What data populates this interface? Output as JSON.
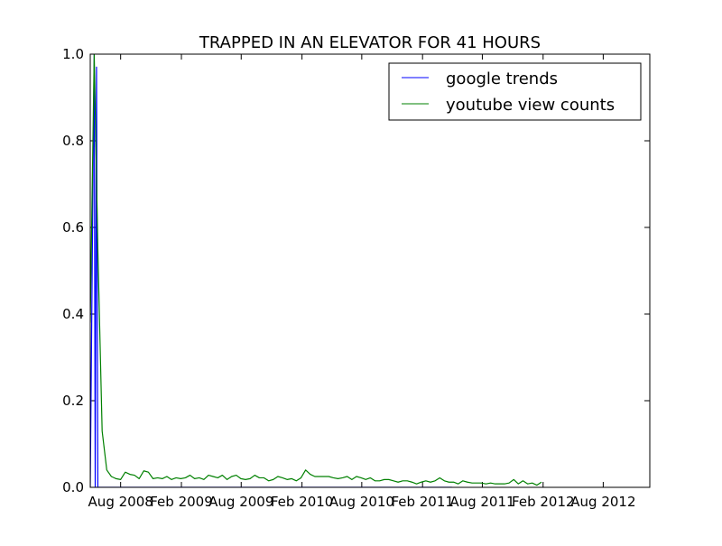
{
  "chart_data": {
    "type": "line",
    "title": "TRAPPED IN AN ELEVATOR FOR 41 HOURS",
    "xlabel": "",
    "ylabel": "",
    "x_axis": {
      "type": "date",
      "range": [
        "2008-05-01",
        "2012-12-20"
      ],
      "ticks": [
        {
          "date": "2008-08-01",
          "label": "Aug 2008"
        },
        {
          "date": "2009-02-01",
          "label": "Feb 2009"
        },
        {
          "date": "2009-08-01",
          "label": "Aug 2009"
        },
        {
          "date": "2010-02-01",
          "label": "Feb 2010"
        },
        {
          "date": "2010-08-01",
          "label": "Aug 2010"
        },
        {
          "date": "2011-02-01",
          "label": "Feb 2011"
        },
        {
          "date": "2011-08-01",
          "label": "Aug 2011"
        },
        {
          "date": "2012-02-01",
          "label": "Feb 2012"
        },
        {
          "date": "2012-08-01",
          "label": "Aug 2012"
        }
      ]
    },
    "ylim": [
      0.0,
      1.0
    ],
    "yticks": [
      "0.0",
      "0.2",
      "0.4",
      "0.6",
      "0.8",
      "1.0"
    ],
    "ytick_values": [
      0,
      0.2,
      0.4,
      0.6,
      0.8,
      1.0
    ],
    "grid": false,
    "legend": {
      "position": "top-right"
    },
    "series": [
      {
        "name": "google trends",
        "color": "#0000ff",
        "points": [
          [
            "2008-05-01",
            0.0
          ],
          [
            "2008-05-08",
            0.6
          ],
          [
            "2008-05-13",
            1.0
          ],
          [
            "2008-05-16",
            0.0
          ],
          [
            "2008-05-20",
            0.97
          ],
          [
            "2008-05-24",
            0.0
          ],
          [
            "2008-07-01",
            0.0
          ],
          [
            "2009-01-01",
            0.0
          ],
          [
            "2009-07-01",
            0.0
          ],
          [
            "2010-01-01",
            0.0
          ],
          [
            "2010-07-01",
            0.0
          ],
          [
            "2011-01-01",
            0.0
          ],
          [
            "2011-05-01",
            0.0
          ]
        ]
      },
      {
        "name": "youtube view counts",
        "color": "#008000",
        "points": [
          [
            "2008-05-01",
            0.38
          ],
          [
            "2008-05-13",
            1.0
          ],
          [
            "2008-05-24",
            0.55
          ],
          [
            "2008-06-06",
            0.13
          ],
          [
            "2008-06-20",
            0.04
          ],
          [
            "2008-07-04",
            0.025
          ],
          [
            "2008-07-18",
            0.02
          ],
          [
            "2008-08-01",
            0.018
          ],
          [
            "2008-08-15",
            0.035
          ],
          [
            "2008-08-29",
            0.03
          ],
          [
            "2008-09-12",
            0.028
          ],
          [
            "2008-09-26",
            0.02
          ],
          [
            "2008-10-10",
            0.038
          ],
          [
            "2008-10-24",
            0.035
          ],
          [
            "2008-11-07",
            0.02
          ],
          [
            "2008-11-21",
            0.022
          ],
          [
            "2008-12-05",
            0.02
          ],
          [
            "2008-12-19",
            0.025
          ],
          [
            "2009-01-02",
            0.018
          ],
          [
            "2009-01-16",
            0.022
          ],
          [
            "2009-01-30",
            0.02
          ],
          [
            "2009-02-13",
            0.022
          ],
          [
            "2009-02-27",
            0.028
          ],
          [
            "2009-03-13",
            0.02
          ],
          [
            "2009-03-27",
            0.022
          ],
          [
            "2009-04-10",
            0.018
          ],
          [
            "2009-04-24",
            0.028
          ],
          [
            "2009-05-08",
            0.025
          ],
          [
            "2009-05-22",
            0.022
          ],
          [
            "2009-06-05",
            0.028
          ],
          [
            "2009-06-19",
            0.018
          ],
          [
            "2009-07-03",
            0.025
          ],
          [
            "2009-07-17",
            0.028
          ],
          [
            "2009-07-31",
            0.02
          ],
          [
            "2009-08-14",
            0.018
          ],
          [
            "2009-08-28",
            0.02
          ],
          [
            "2009-09-11",
            0.028
          ],
          [
            "2009-09-25",
            0.022
          ],
          [
            "2009-10-09",
            0.022
          ],
          [
            "2009-10-23",
            0.015
          ],
          [
            "2009-11-06",
            0.018
          ],
          [
            "2009-11-20",
            0.025
          ],
          [
            "2009-12-04",
            0.022
          ],
          [
            "2009-12-18",
            0.018
          ],
          [
            "2010-01-01",
            0.02
          ],
          [
            "2010-01-15",
            0.015
          ],
          [
            "2010-01-29",
            0.022
          ],
          [
            "2010-02-12",
            0.04
          ],
          [
            "2010-02-26",
            0.03
          ],
          [
            "2010-03-12",
            0.025
          ],
          [
            "2010-03-26",
            0.025
          ],
          [
            "2010-04-09",
            0.025
          ],
          [
            "2010-04-23",
            0.025
          ],
          [
            "2010-05-07",
            0.022
          ],
          [
            "2010-05-21",
            0.02
          ],
          [
            "2010-06-04",
            0.022
          ],
          [
            "2010-06-18",
            0.025
          ],
          [
            "2010-07-02",
            0.018
          ],
          [
            "2010-07-16",
            0.025
          ],
          [
            "2010-07-30",
            0.022
          ],
          [
            "2010-08-13",
            0.018
          ],
          [
            "2010-08-27",
            0.022
          ],
          [
            "2010-09-10",
            0.015
          ],
          [
            "2010-09-24",
            0.015
          ],
          [
            "2010-10-08",
            0.018
          ],
          [
            "2010-10-22",
            0.018
          ],
          [
            "2010-11-05",
            0.015
          ],
          [
            "2010-11-19",
            0.012
          ],
          [
            "2010-12-03",
            0.015
          ],
          [
            "2010-12-17",
            0.015
          ],
          [
            "2010-12-31",
            0.012
          ],
          [
            "2011-01-14",
            0.008
          ],
          [
            "2011-01-28",
            0.012
          ],
          [
            "2011-02-11",
            0.015
          ],
          [
            "2011-02-25",
            0.012
          ],
          [
            "2011-03-11",
            0.015
          ],
          [
            "2011-03-25",
            0.022
          ],
          [
            "2011-04-08",
            0.015
          ],
          [
            "2011-04-22",
            0.012
          ],
          [
            "2011-05-06",
            0.012
          ],
          [
            "2011-05-20",
            0.008
          ],
          [
            "2011-06-03",
            0.015
          ],
          [
            "2011-06-17",
            0.012
          ],
          [
            "2011-07-01",
            0.01
          ],
          [
            "2011-07-15",
            0.01
          ],
          [
            "2011-07-29",
            0.01
          ],
          [
            "2011-08-12",
            0.008
          ],
          [
            "2011-08-26",
            0.01
          ],
          [
            "2011-09-09",
            0.008
          ],
          [
            "2011-09-23",
            0.008
          ],
          [
            "2011-10-07",
            0.008
          ],
          [
            "2011-10-21",
            0.01
          ],
          [
            "2011-11-04",
            0.018
          ],
          [
            "2011-11-18",
            0.008
          ],
          [
            "2011-12-02",
            0.015
          ],
          [
            "2011-12-16",
            0.008
          ],
          [
            "2011-12-30",
            0.01
          ],
          [
            "2012-01-13",
            0.005
          ],
          [
            "2012-01-27",
            0.012
          ]
        ]
      }
    ]
  }
}
